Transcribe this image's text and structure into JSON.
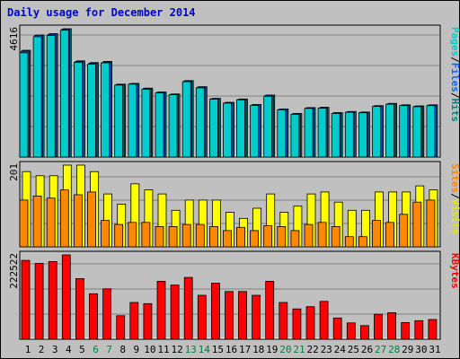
{
  "title": "Daily usage for December 2014",
  "chart_data": [
    {
      "type": "bar",
      "panel": "top",
      "categories": [
        "1",
        "2",
        "3",
        "4",
        "5",
        "6",
        "7",
        "8",
        "9",
        "10",
        "11",
        "12",
        "13",
        "14",
        "15",
        "16",
        "17",
        "18",
        "19",
        "20",
        "21",
        "22",
        "23",
        "24",
        "25",
        "26",
        "27",
        "28",
        "29",
        "30",
        "31"
      ],
      "weekend_categories": [
        "6",
        "7",
        "13",
        "14",
        "20",
        "21",
        "27",
        "28"
      ],
      "ymax_label": "4616",
      "ylim": [
        0,
        4616
      ],
      "legend": [
        {
          "text": "Pages",
          "color": "#00cccc"
        },
        {
          "text": "/",
          "color": "#000000"
        },
        {
          "text": "Files",
          "color": "#0066ff"
        },
        {
          "text": "/",
          "color": "#000000"
        },
        {
          "text": "Hits",
          "color": "#008080"
        }
      ],
      "series": [
        {
          "name": "Hits",
          "color": "#008080",
          "values": [
            3840,
            4390,
            4440,
            4616,
            3460,
            3400,
            3440,
            2620,
            2650,
            2480,
            2340,
            2270,
            2750,
            2530,
            2110,
            1970,
            2090,
            1890,
            2230,
            1730,
            1570,
            1780,
            1790,
            1600,
            1640,
            1620,
            1850,
            1930,
            1880,
            1840,
            1880
          ]
        },
        {
          "name": "Files",
          "color": "#0066ff",
          "values": [
            3810,
            4380,
            4420,
            4600,
            3440,
            3380,
            3420,
            2610,
            2640,
            2470,
            2330,
            2260,
            2740,
            2520,
            2100,
            1960,
            2080,
            1880,
            2220,
            1720,
            1560,
            1770,
            1780,
            1590,
            1630,
            1610,
            1840,
            1920,
            1870,
            1830,
            1870
          ]
        },
        {
          "name": "Pages",
          "color": "#00cccc",
          "values": [
            3750,
            4330,
            4370,
            4560,
            3410,
            3340,
            3390,
            2590,
            2620,
            2440,
            2310,
            2240,
            2710,
            2490,
            2080,
            1940,
            2060,
            1860,
            2190,
            1700,
            1540,
            1750,
            1760,
            1570,
            1610,
            1590,
            1820,
            1900,
            1850,
            1810,
            1850
          ]
        }
      ]
    },
    {
      "type": "bar",
      "panel": "middle",
      "categories": [
        "1",
        "2",
        "3",
        "4",
        "5",
        "6",
        "7",
        "8",
        "9",
        "10",
        "11",
        "12",
        "13",
        "14",
        "15",
        "16",
        "17",
        "18",
        "19",
        "20",
        "21",
        "22",
        "23",
        "24",
        "25",
        "26",
        "27",
        "28",
        "29",
        "30",
        "31"
      ],
      "ymax_label": "201",
      "ylim": [
        0,
        201
      ],
      "legend": [
        {
          "text": "Sites",
          "color": "#ff8800"
        },
        {
          "text": "/",
          "color": "#000000"
        },
        {
          "text": "Visits",
          "color": "#e6e600"
        }
      ],
      "series": [
        {
          "name": "Visits",
          "color": "#ffff00",
          "values": [
            185,
            175,
            175,
            201,
            201,
            185,
            130,
            105,
            155,
            140,
            130,
            90,
            115,
            115,
            115,
            85,
            70,
            95,
            130,
            85,
            100,
            130,
            135,
            110,
            90,
            90,
            135,
            135,
            135,
            150,
            140
          ]
        },
        {
          "name": "Sites",
          "color": "#ff8800",
          "values": [
            115,
            125,
            120,
            140,
            128,
            135,
            65,
            55,
            60,
            60,
            50,
            50,
            55,
            55,
            50,
            40,
            48,
            40,
            52,
            50,
            40,
            55,
            60,
            50,
            25,
            25,
            65,
            60,
            80,
            110,
            115
          ]
        }
      ]
    },
    {
      "type": "bar",
      "panel": "bottom",
      "categories": [
        "1",
        "2",
        "3",
        "4",
        "5",
        "6",
        "7",
        "8",
        "9",
        "10",
        "11",
        "12",
        "13",
        "14",
        "15",
        "16",
        "17",
        "18",
        "19",
        "20",
        "21",
        "22",
        "23",
        "24",
        "25",
        "26",
        "27",
        "28",
        "29",
        "30",
        "31"
      ],
      "ymax_label": "222522",
      "ylim": [
        0,
        222522
      ],
      "legend": [
        {
          "text": "KBytes",
          "color": "#ff0000"
        }
      ],
      "series": [
        {
          "name": "KBytes",
          "color": "#ff0000",
          "values": [
            208000,
            200000,
            205000,
            222522,
            160000,
            120000,
            133000,
            62000,
            97000,
            94000,
            153000,
            143000,
            163000,
            116000,
            148000,
            126000,
            126000,
            116000,
            153000,
            97000,
            80000,
            86000,
            100000,
            56000,
            43000,
            36000,
            66000,
            70000,
            44000,
            49000,
            52000
          ]
        }
      ]
    }
  ]
}
